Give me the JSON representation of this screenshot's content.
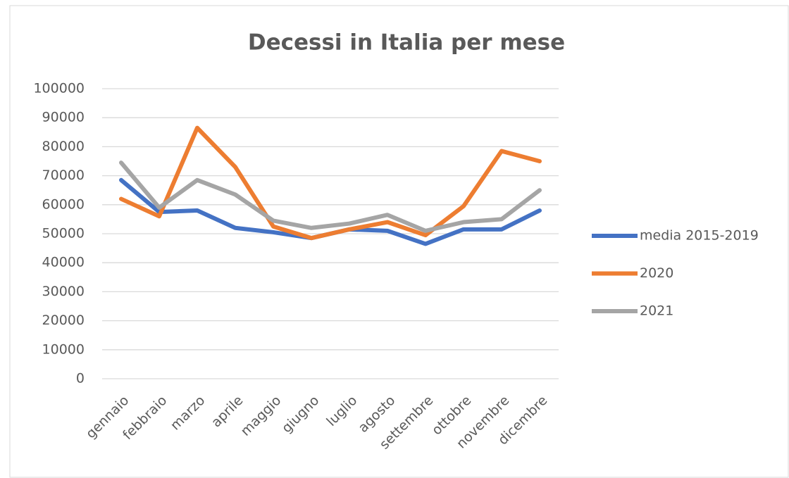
{
  "chart_data": {
    "type": "line",
    "title": "Decessi in Italia per mese",
    "categories": [
      "gennaio",
      "febbraio",
      "marzo",
      "aprile",
      "maggio",
      "giugno",
      "luglio",
      "agosto",
      "settembre",
      "ottobre",
      "novembre",
      "dicembre"
    ],
    "series": [
      {
        "name": "media 2015-2019",
        "color": "#4472c4",
        "values": [
          68500,
          57500,
          58000,
          52000,
          50500,
          48500,
          51500,
          51000,
          46500,
          51500,
          51500,
          58000
        ]
      },
      {
        "name": "2020",
        "color": "#ed7d31",
        "values": [
          62000,
          56000,
          86500,
          73000,
          52500,
          48500,
          51500,
          54000,
          49500,
          59500,
          78500,
          75000
        ]
      },
      {
        "name": "2021",
        "color": "#a5a5a5",
        "values": [
          74500,
          59000,
          68500,
          63500,
          54500,
          52000,
          53500,
          56500,
          51000,
          54000,
          55000,
          65000
        ]
      }
    ],
    "ylim": [
      0,
      100000
    ],
    "yticks": [
      0,
      10000,
      20000,
      30000,
      40000,
      50000,
      60000,
      70000,
      80000,
      90000,
      100000
    ],
    "grid": true,
    "legend": "right"
  }
}
